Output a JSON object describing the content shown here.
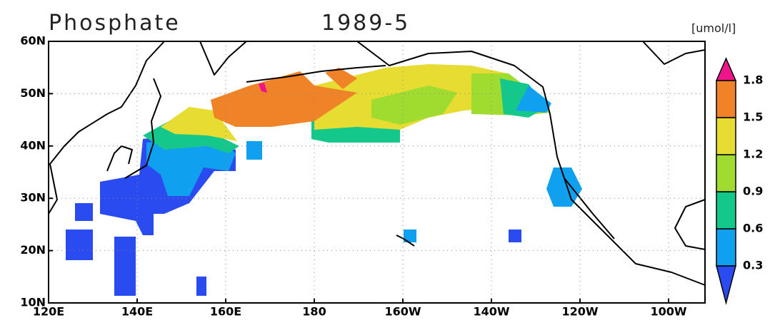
{
  "title": "Phosphate",
  "date": "1989-5",
  "units": "[umol/l]",
  "lat_labels": [
    "60N",
    "50N",
    "40N",
    "30N",
    "20N",
    "10N"
  ],
  "lon_labels": [
    "120E",
    "140E",
    "160E",
    "180",
    "160W",
    "140W",
    "120W",
    "100W"
  ],
  "colorbar": {
    "levels": [
      0.3,
      0.6,
      0.9,
      1.2,
      1.5,
      1.8
    ],
    "colors": [
      "#2a4bf0",
      "#10a0f0",
      "#14c88c",
      "#a0dc30",
      "#e6dc32",
      "#f08228",
      "#f0148c"
    ]
  }
}
